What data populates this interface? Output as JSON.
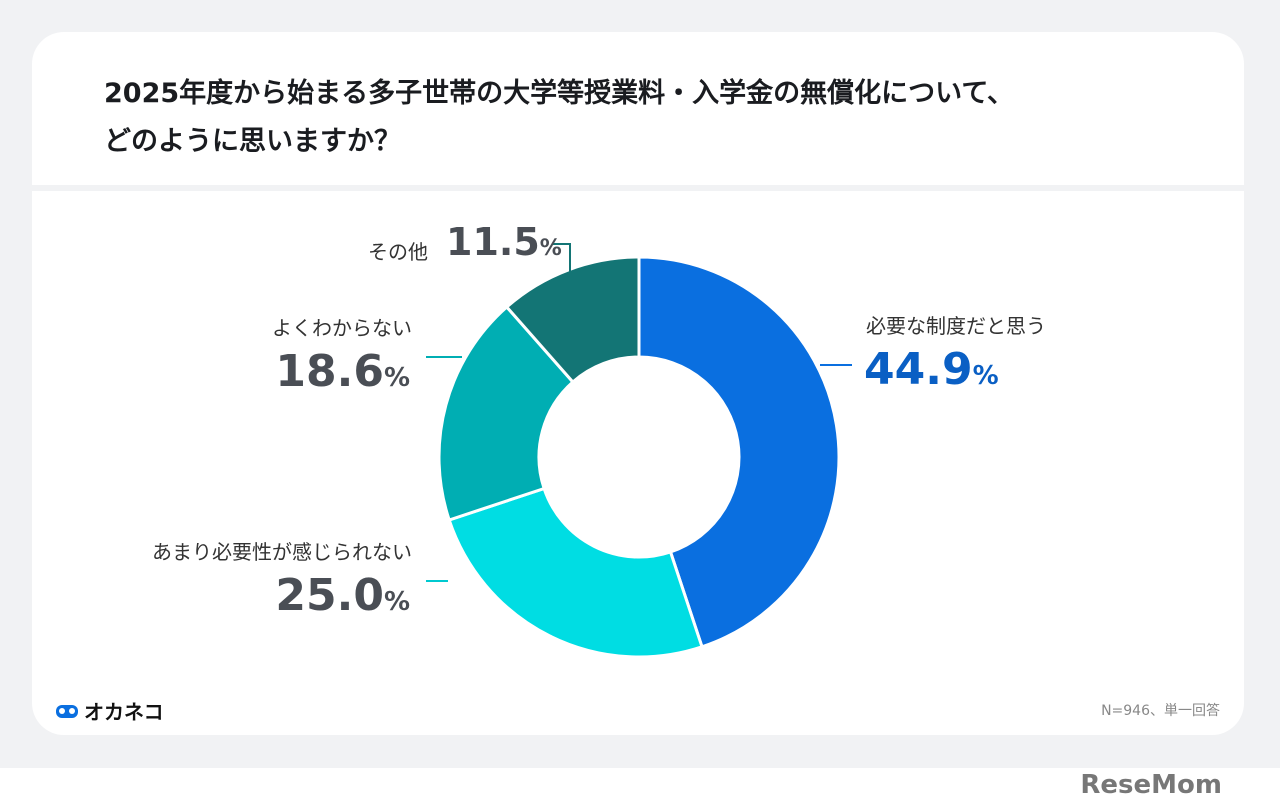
{
  "title_line1": "2025年度から始まる多子世帯の大学等授業料・入学金の無償化について、",
  "title_line2": "どのように思いますか？",
  "chart_data": {
    "type": "pie",
    "donut": true,
    "categories": [
      "必要な制度だと思う",
      "あまり必要性が感じられない",
      "よくわからない",
      "その他"
    ],
    "values": [
      44.9,
      25.0,
      18.6,
      11.5
    ],
    "value_labels": [
      "44.9",
      "25.0",
      "18.6",
      "11.5"
    ],
    "unit": "%",
    "colors": [
      "#0a6fe0",
      "#00dde3",
      "#00aeb3",
      "#137575"
    ],
    "legend": "none"
  },
  "note": "N=946、単一回答",
  "brand": "オカネコ",
  "watermark": "ReseMom"
}
